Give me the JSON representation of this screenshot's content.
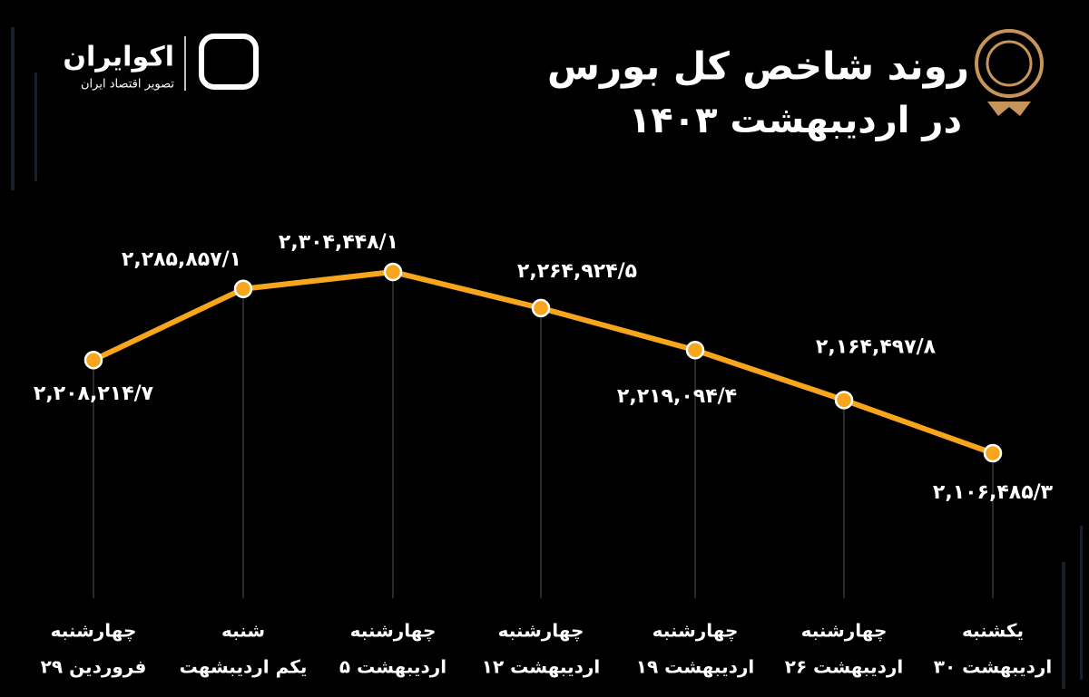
{
  "chart_data": {
    "type": "line",
    "title": "روند شاخص کل بورس",
    "subtitle": "در اردیبهشت ۱۴۰۳",
    "brand": {
      "name": "اکوایران",
      "tagline": "تصویر اقتصاد ایران"
    },
    "categories": [
      [
        "چهارشنبه",
        "۲۹ فروردین"
      ],
      [
        "شنبه",
        "یکم اردیبشهت"
      ],
      [
        "چهارشنبه",
        "۵ اردیبهشت"
      ],
      [
        "چهارشنبه",
        "۱۲ اردیبهشت"
      ],
      [
        "چهارشنبه",
        "۱۹ اردیبهشت"
      ],
      [
        "چهارشنبه",
        "۲۶ اردیبهشت"
      ],
      [
        "یکشنبه",
        "۳۰ اردیبهشت"
      ]
    ],
    "series": [
      {
        "name": "شاخص کل",
        "color": "#f7a51c",
        "values": [
          2208214.7,
          2285857.1,
          2304448.1,
          2264924.5,
          2219094.4,
          2164497.8,
          2106485.3
        ],
        "value_labels": [
          "۲,۲۰۸,۲۱۴/۷",
          "۲,۲۸۵,۸۵۷/۱",
          "۲,۳۰۴,۴۴۸/۱",
          "۲,۲۶۴,۹۲۴/۵",
          "۲,۲۱۹,۰۹۴/۴",
          "۲,۱۶۴,۴۹۷/۸",
          "۲,۱۰۶,۴۸۵/۳"
        ]
      }
    ]
  }
}
